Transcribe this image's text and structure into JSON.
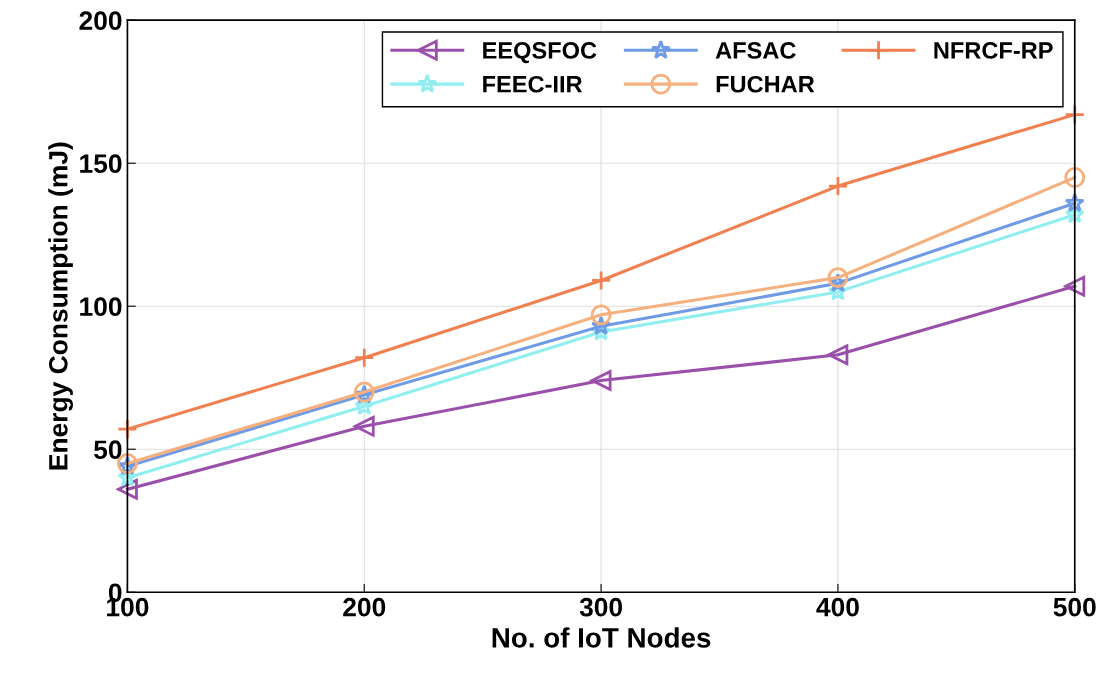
{
  "chart_data": {
    "type": "line",
    "xlabel": "No. of IoT Nodes",
    "ylabel": "Energy Consumption (mJ)",
    "x": [
      100,
      200,
      300,
      400,
      500
    ],
    "series": [
      {
        "name": "EEQSFOC",
        "color": "#9a50aa",
        "marker": "triangle",
        "values": [
          36,
          58,
          74,
          83,
          107
        ]
      },
      {
        "name": "FEEC-IIR",
        "color": "#90eef0",
        "marker": "star",
        "values": [
          40,
          65,
          91,
          105,
          132
        ]
      },
      {
        "name": "AFSAC",
        "color": "#6e9ae6",
        "marker": "star",
        "values": [
          44,
          69,
          93,
          108,
          136
        ]
      },
      {
        "name": "FUCHAR",
        "color": "#f6b07e",
        "marker": "circle",
        "values": [
          45,
          70,
          97,
          110,
          145
        ]
      },
      {
        "name": "NFRCF-RP",
        "color": "#f08050",
        "marker": "cross",
        "values": [
          57,
          82,
          109,
          142,
          167
        ]
      }
    ],
    "xlim": [
      100,
      500
    ],
    "xticks": [
      100,
      200,
      300,
      400,
      500
    ],
    "ylim": [
      0,
      200
    ],
    "yticks": [
      0,
      50,
      100,
      150,
      200
    ],
    "grid": true,
    "legend": "top right"
  }
}
